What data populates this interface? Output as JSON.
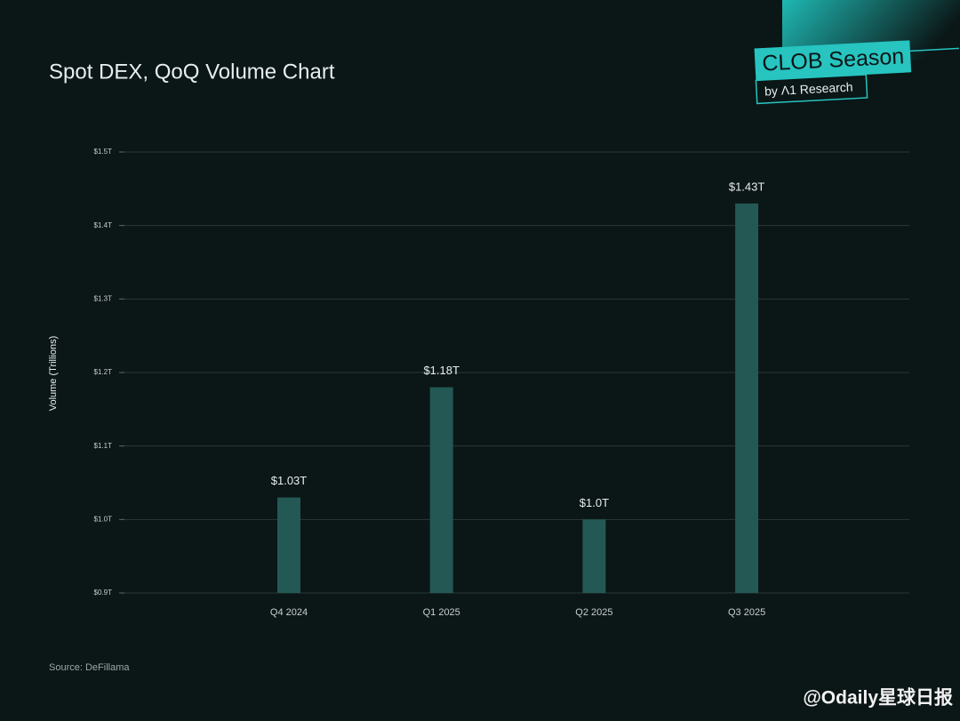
{
  "chart_data": {
    "type": "bar",
    "title": "Spot DEX, QoQ Volume Chart",
    "ylabel": "Volume (Trillions)",
    "categories": [
      "Q4 2024",
      "Q1 2025",
      "Q2 2025",
      "Q3 2025"
    ],
    "values": [
      1.03,
      1.18,
      1.0,
      1.43
    ],
    "value_labels": [
      "$1.03T",
      "$1.18T",
      "$1.0T",
      "$1.43T"
    ],
    "color": "#235854",
    "ylim": [
      0.9,
      1.5
    ],
    "yticks": [
      {
        "value": 0.9,
        "label": "$0.9T"
      },
      {
        "value": 1.0,
        "label": "$1.0T"
      },
      {
        "value": 1.1,
        "label": "$1.1T"
      },
      {
        "value": 1.2,
        "label": "$1.2T"
      },
      {
        "value": 1.3,
        "label": "$1.3T"
      },
      {
        "value": 1.4,
        "label": "$1.4T"
      },
      {
        "value": 1.5,
        "label": "$1.5T"
      }
    ],
    "grid": true,
    "source": "Source: DeFillama"
  },
  "branding": {
    "badge": "CLOB Season",
    "byline": "by Λ1 Research",
    "watermark": "@Odaily星球日报"
  }
}
